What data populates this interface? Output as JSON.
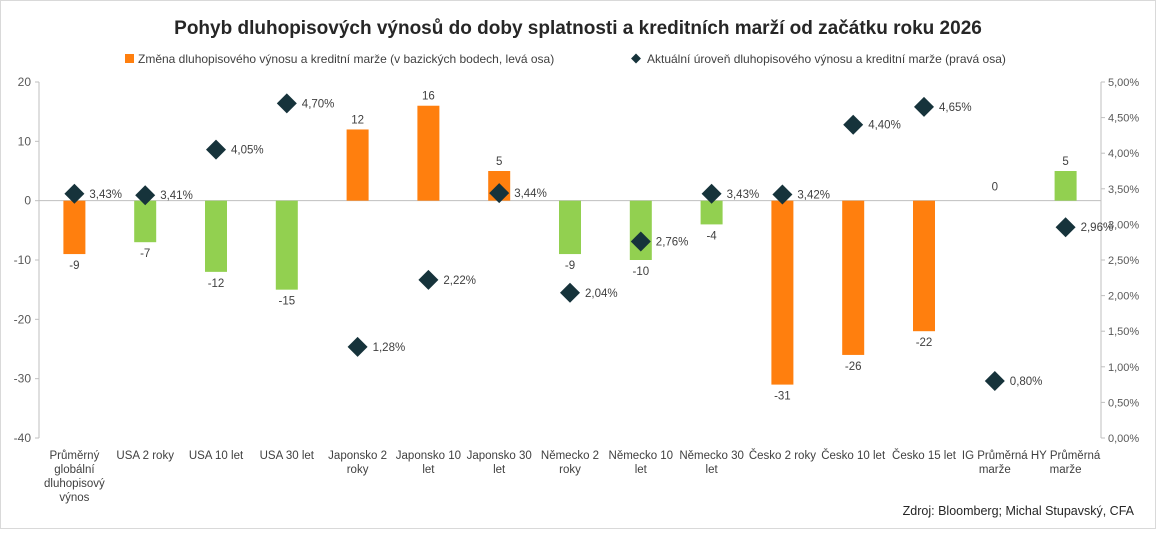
{
  "chart_data": {
    "type": "bar+scatter",
    "title": "Pohyb dluhopisových výnosů do doby splatnosti a kreditních marží od začátku roku 2026",
    "categories": [
      [
        "Průměrný",
        "globální",
        "dluhopisový",
        "výnos"
      ],
      [
        "USA 2 roky"
      ],
      [
        "USA 10 let"
      ],
      [
        "USA 30 let"
      ],
      [
        "Japonsko 2",
        "roky"
      ],
      [
        "Japonsko 10",
        "let"
      ],
      [
        "Japonsko 30",
        "let"
      ],
      [
        "Německo 2",
        "roky"
      ],
      [
        "Německo 10",
        "let"
      ],
      [
        "Německo 30",
        "let"
      ],
      [
        "Česko 2 roky"
      ],
      [
        "Česko 10 let"
      ],
      [
        "Česko 15 let"
      ],
      [
        "IG Průměrná",
        "marže"
      ],
      [
        "HY Průměrná",
        "marže"
      ]
    ],
    "series": [
      {
        "name": "Změna dluhopisového výnosu a kreditní marže (v bazických bodech, levá osa)",
        "axis": "left",
        "values": [
          -9,
          -7,
          -12,
          -15,
          12,
          16,
          5,
          -9,
          -10,
          -4,
          -31,
          -26,
          -22,
          0,
          5
        ],
        "labels": [
          "-9",
          "-7",
          "-12",
          "-15",
          "12",
          "16",
          "5",
          "-9",
          "-10",
          "-4",
          "-31",
          "-26",
          "-22",
          "0",
          "5"
        ],
        "colors": [
          "#ff7f0e",
          "#92d050",
          "#92d050",
          "#92d050",
          "#ff7f0e",
          "#ff7f0e",
          "#ff7f0e",
          "#92d050",
          "#92d050",
          "#92d050",
          "#ff7f0e",
          "#ff7f0e",
          "#ff7f0e",
          "#ff7f0e",
          "#92d050"
        ]
      },
      {
        "name": "Aktuální úroveň dluhopisového výnosu a kreditní marže (pravá osa)",
        "axis": "right",
        "values": [
          3.43,
          3.41,
          4.05,
          4.7,
          1.28,
          2.22,
          3.44,
          2.04,
          2.76,
          3.43,
          3.42,
          4.4,
          4.65,
          0.8,
          2.96
        ],
        "labels": [
          "3,43%",
          "3,41%",
          "4,05%",
          "4,70%",
          "1,28%",
          "2,22%",
          "3,44%",
          "2,04%",
          "2,76%",
          "3,43%",
          "3,42%",
          "4,40%",
          "4,65%",
          "0,80%",
          "2,96%"
        ],
        "color": "#16333b"
      }
    ],
    "left_axis": {
      "ylim": [
        -40,
        20
      ],
      "ticks": [
        20,
        10,
        0,
        -10,
        -20,
        -30,
        -40
      ],
      "tick_labels": [
        "20",
        "10",
        "0",
        "-10",
        "-20",
        "-30",
        "-40"
      ]
    },
    "right_axis": {
      "ylim": [
        0,
        5
      ],
      "ticks": [
        5,
        4.5,
        4,
        3.5,
        3,
        2.5,
        2,
        1.5,
        1,
        0.5,
        0
      ],
      "tick_labels": [
        "5,00%",
        "4,50%",
        "4,00%",
        "3,50%",
        "3,00%",
        "2,50%",
        "2,00%",
        "1,50%",
        "1,00%",
        "0,50%",
        "0,00%"
      ]
    },
    "legend_position": "top",
    "grid": false,
    "source": "Zdroj: Bloomberg; Michal Stupavský, CFA"
  }
}
